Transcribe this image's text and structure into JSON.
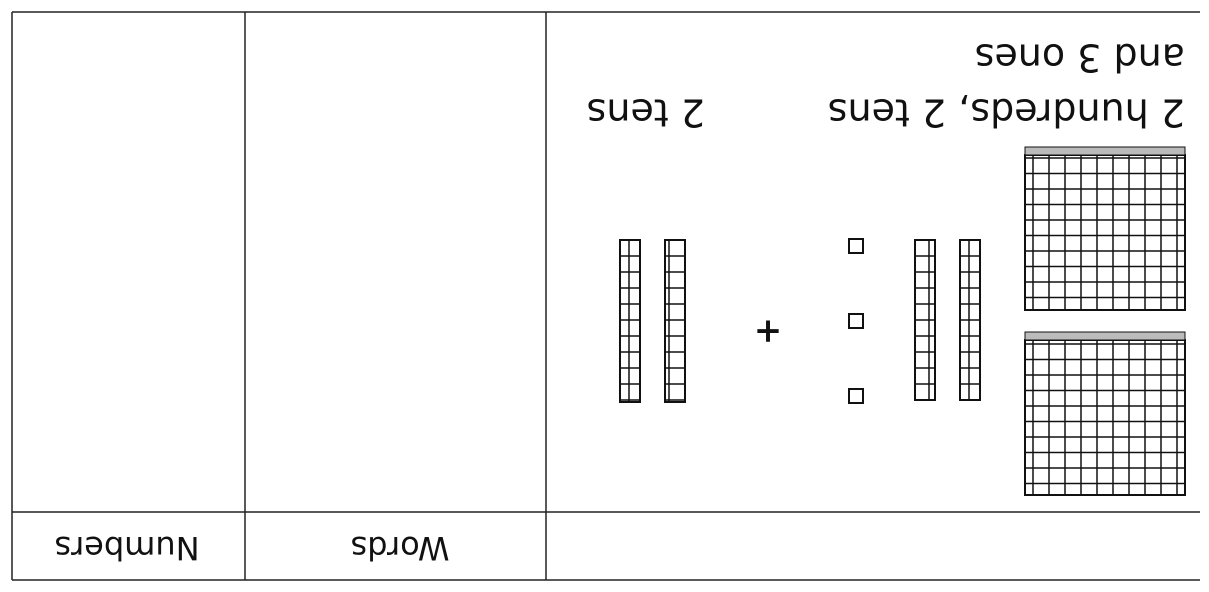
{
  "table": {
    "headers": [
      "Words",
      "Numbers"
    ],
    "rows": [
      {
        "description": "2 hundreds, 2 tens",
        "description_line2": "and 3 ones",
        "operator": "+",
        "addend": "2 tens"
      }
    ]
  }
}
